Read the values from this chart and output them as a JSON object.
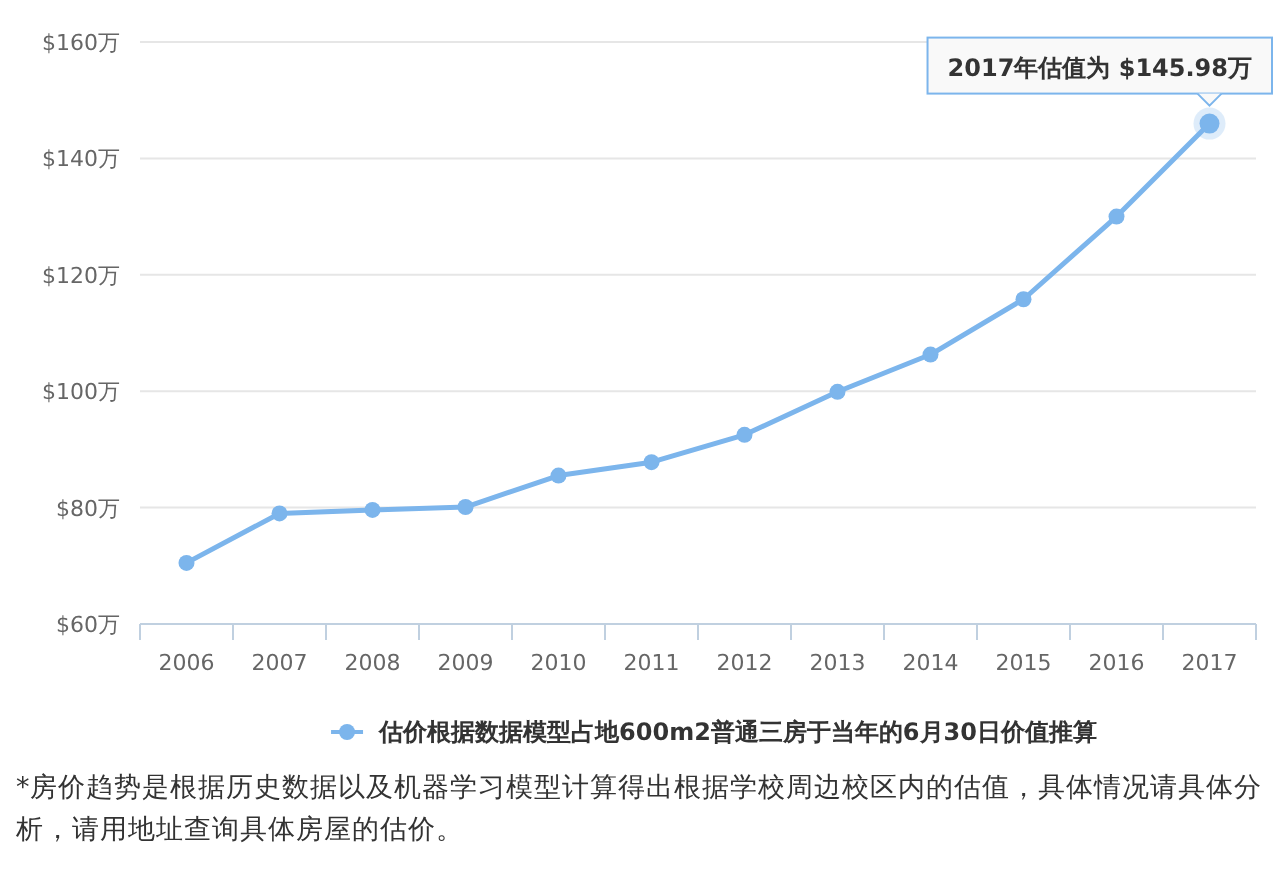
{
  "chart_data": {
    "type": "line",
    "categories": [
      "2006",
      "2007",
      "2008",
      "2009",
      "2010",
      "2011",
      "2012",
      "2013",
      "2014",
      "2015",
      "2016",
      "2017"
    ],
    "series": [
      {
        "name": "估价根据数据模型占地600m2普通三房于当年的6月30日价值推算",
        "color": "#7cb5ec",
        "values": [
          70.5,
          79.0,
          79.6,
          80.1,
          85.5,
          87.8,
          92.5,
          99.9,
          106.3,
          115.8,
          130.0,
          145.98
        ]
      }
    ],
    "ylim": [
      60,
      160
    ],
    "yticks": [
      {
        "value": 60,
        "label": "$60万"
      },
      {
        "value": 80,
        "label": "$80万"
      },
      {
        "value": 100,
        "label": "$100万"
      },
      {
        "value": 120,
        "label": "$120万"
      },
      {
        "value": 140,
        "label": "$140万"
      },
      {
        "value": 160,
        "label": "$160万"
      }
    ],
    "grid": "y",
    "legend": "bottom",
    "marker": "circle",
    "line_style": "solid",
    "annotations": [
      {
        "text": "2017年估值为 $145.98万",
        "x": "2017",
        "y": 145.98
      },
      "*房价趋势是根据历史数据以及机器学习模型计算得出根据学校周边校区内的估值，具体情况请具体分析，请用地址查询具体房屋的估价。"
    ]
  }
}
